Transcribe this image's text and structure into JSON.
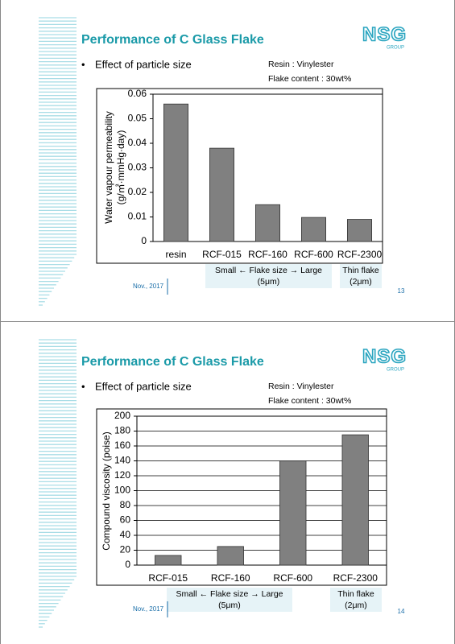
{
  "slides": [
    {
      "title": "Performance of C Glass Flake",
      "bullet": "•",
      "subtitle": "Effect of particle size",
      "resin": "Resin : Vinylester",
      "flake_content": "Flake content : 30wt%",
      "logo": "NSG",
      "logo_sub": "GROUP",
      "note_left": [
        "Small ← Flake size → Large",
        "(5μm)"
      ],
      "note_right": [
        "Thin flake",
        "(2μm)"
      ],
      "date": "Nov., 2017",
      "page": "13"
    },
    {
      "title": "Performance of C Glass Flake",
      "bullet": "•",
      "subtitle": "Effect of particle size",
      "resin": "Resin : Vinylester",
      "flake_content": "Flake content : 30wt%",
      "logo": "NSG",
      "logo_sub": "GROUP",
      "note_left": [
        "Small ← Flake size → Large",
        "(5μm)"
      ],
      "note_right": [
        "Thin flake",
        "(2μm)"
      ],
      "date": "Nov., 2017",
      "page": "14"
    }
  ],
  "chart_data": [
    {
      "type": "bar",
      "y_label": [
        "Water vapour permeability",
        "(g/㎡·mmHg·day)"
      ],
      "categories": [
        "resin",
        "RCF-015",
        "RCF-160",
        "RCF-600",
        "RCF-2300"
      ],
      "values": [
        0.056,
        0.038,
        0.015,
        0.0098,
        0.009
      ],
      "color": "#808080",
      "ylim": [
        0,
        0.06
      ],
      "yticks": [
        0,
        0.01,
        0.02,
        0.03,
        0.04,
        0.05,
        0.06
      ],
      "grid": false
    },
    {
      "type": "bar",
      "y_label": [
        "Compound viscosity (poise)"
      ],
      "categories": [
        "RCF-015",
        "RCF-160",
        "RCF-600",
        "RCF-2300"
      ],
      "values": [
        13,
        25,
        140,
        175
      ],
      "color": "#808080",
      "ylim": [
        0,
        200
      ],
      "yticks": [
        0,
        20,
        40,
        60,
        80,
        100,
        120,
        140,
        160,
        180,
        200
      ],
      "grid": true
    }
  ]
}
